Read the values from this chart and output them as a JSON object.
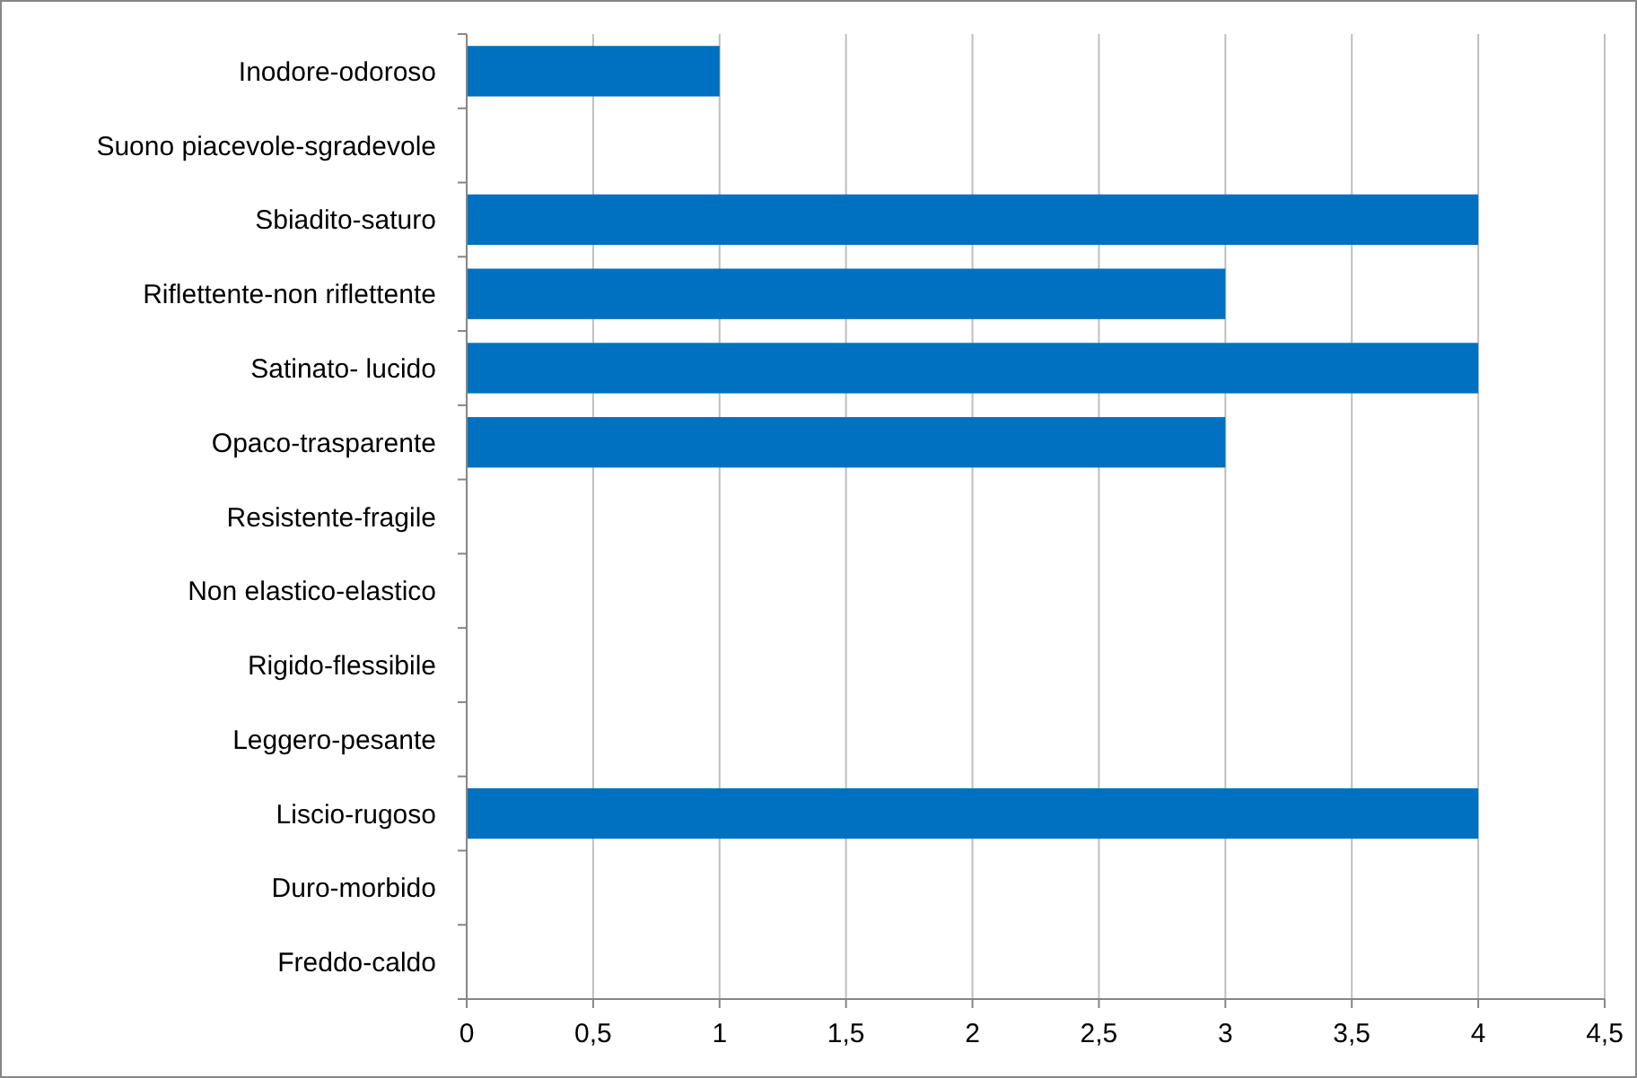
{
  "chart_data": {
    "type": "bar",
    "orientation": "horizontal",
    "categories": [
      "Inodore-odoroso",
      "Suono piacevole-sgradevole",
      "Sbiadito-saturo",
      "Riflettente-non riflettente",
      "Satinato- lucido",
      "Opaco-trasparente",
      "Resistente-fragile",
      "Non elastico-elastico",
      "Rigido-flessibile",
      "Leggero-pesante",
      "Liscio-rugoso",
      "Duro-morbido",
      "Freddo-caldo"
    ],
    "values": [
      1,
      0,
      4,
      3,
      4,
      3,
      0,
      0,
      0,
      0,
      4,
      0,
      0
    ],
    "color": "#0070c0",
    "xlim": [
      0,
      4.5
    ],
    "xticks": [
      {
        "value": 0,
        "label": "0"
      },
      {
        "value": 0.5,
        "label": "0,5"
      },
      {
        "value": 1,
        "label": "1"
      },
      {
        "value": 1.5,
        "label": "1,5"
      },
      {
        "value": 2,
        "label": "2"
      },
      {
        "value": 2.5,
        "label": "2,5"
      },
      {
        "value": 3,
        "label": "3"
      },
      {
        "value": 3.5,
        "label": "3,5"
      },
      {
        "value": 4,
        "label": "4"
      },
      {
        "value": 4.5,
        "label": "4,5"
      }
    ],
    "grid": "x"
  }
}
